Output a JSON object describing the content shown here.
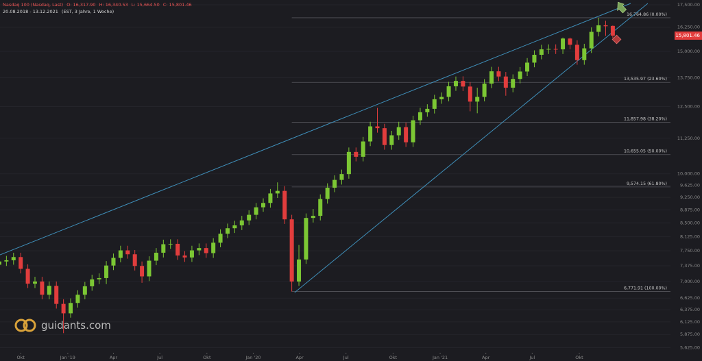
{
  "chart_data": {
    "type": "candlestick",
    "title": "Nasdaq 100 (Nasdaq, Last)",
    "ohlc_labels": [
      "O: 16,317.90",
      "H: 16,340.53",
      "L: 15,664.50",
      "C: 15,801.46"
    ],
    "subtitle": "20.08.2018 - 13.12.2021",
    "period": "(EST, 3 Jahre, 1 Woche)",
    "watermark": "guidants.com",
    "up_color": "#7cc734",
    "down_color": "#e23d3d",
    "log_scale": true,
    "grid": true,
    "open": [
      7400,
      7480,
      7510,
      7590,
      7300,
      6950,
      7000,
      6700,
      6900,
      6500,
      6300,
      6520,
      6700,
      6890,
      7050,
      7080,
      7380,
      7570,
      7760,
      7660,
      7370,
      7120,
      7500,
      7700,
      7920,
      7930,
      7630,
      7580,
      7760,
      7820,
      7690,
      7960,
      8200,
      8350,
      8430,
      8570,
      8730,
      8950,
      9080,
      9370,
      9450,
      8600,
      7000,
      7530,
      8640,
      8700,
      9200,
      9550,
      9800,
      9990,
      10750,
      10580,
      11130,
      11700,
      11630,
      11000,
      11360,
      11670,
      11100,
      11940,
      12260,
      12400,
      12800,
      12900,
      13360,
      13600,
      13350,
      12700,
      12900,
      13480,
      14040,
      13800,
      13300,
      13690,
      14030,
      14450,
      14830,
      15100,
      15120,
      15100,
      15650,
      15330,
      14570,
      15150,
      16000,
      16350,
      16317.9
    ],
    "high": [
      7590,
      7620,
      7700,
      7700,
      7410,
      7110,
      7110,
      7000,
      7000,
      6600,
      6620,
      6800,
      6990,
      7160,
      7190,
      7490,
      7680,
      7880,
      7880,
      7770,
      7480,
      7610,
      7820,
      8040,
      8050,
      8050,
      7740,
      7880,
      7940,
      7940,
      8080,
      8320,
      8480,
      8560,
      8700,
      8860,
      9080,
      9220,
      9510,
      9720,
      9600,
      8730,
      7900,
      8770,
      8900,
      9340,
      9690,
      9950,
      10140,
      10910,
      10910,
      11300,
      11880,
      12440,
      11800,
      11530,
      11880,
      11850,
      12120,
      12440,
      12590,
      12990,
      13090,
      13560,
      13800,
      13810,
      13550,
      13300,
      13680,
      14250,
      14250,
      14010,
      13900,
      14240,
      14670,
      15050,
      15330,
      15350,
      15350,
      15700,
      15700,
      15560,
      15380,
      16240,
      16764.86,
      16600,
      16340.53
    ],
    "low": [
      7290,
      7370,
      7400,
      7190,
      6850,
      6850,
      6600,
      6600,
      6400,
      5900,
      6210,
      6420,
      6600,
      6790,
      6940,
      6940,
      7270,
      7460,
      7550,
      7260,
      6970,
      7010,
      7390,
      7580,
      7800,
      7520,
      7470,
      7470,
      7640,
      7570,
      7570,
      7840,
      8080,
      8220,
      8300,
      8440,
      8600,
      8820,
      8940,
      9230,
      8470,
      6771.91,
      6900,
      7420,
      8510,
      8570,
      9060,
      9410,
      9650,
      9840,
      10420,
      10420,
      10960,
      11460,
      10830,
      10830,
      11190,
      10930,
      10930,
      11760,
      12080,
      12210,
      12610,
      12710,
      13160,
      13150,
      12300,
      12220,
      12710,
      13280,
      13590,
      12950,
      13100,
      13490,
      13820,
      14230,
      14610,
      14870,
      14870,
      14870,
      15100,
      14350,
      14350,
      14920,
      15760,
      15790,
      15664.5
    ],
    "close": [
      7480,
      7510,
      7590,
      7300,
      6950,
      7000,
      6700,
      6900,
      6500,
      6300,
      6520,
      6700,
      6890,
      7050,
      7080,
      7380,
      7570,
      7760,
      7660,
      7370,
      7120,
      7500,
      7700,
      7920,
      7930,
      7630,
      7580,
      7760,
      7820,
      7690,
      7960,
      8200,
      8350,
      8430,
      8570,
      8730,
      8950,
      9080,
      9370,
      9450,
      8600,
      7000,
      7530,
      8640,
      8700,
      9200,
      9550,
      9800,
      9990,
      10750,
      10580,
      11130,
      11700,
      11630,
      11000,
      11360,
      11670,
      11100,
      11940,
      12260,
      12400,
      12800,
      12900,
      13360,
      13600,
      13350,
      12700,
      12900,
      13480,
      14040,
      13800,
      13300,
      13690,
      14030,
      14450,
      14830,
      15100,
      15120,
      15100,
      15650,
      15330,
      14570,
      15150,
      16000,
      16350,
      16300,
      15801.46
    ],
    "xlim": [
      0.1,
      98.5
    ],
    "xticks": [
      {
        "value": 3.0,
        "label": "Okt"
      },
      {
        "value": 9.6,
        "label": "Jan '19"
      },
      {
        "value": 16.0,
        "label": "Apr"
      },
      {
        "value": 22.5,
        "label": "Jul"
      },
      {
        "value": 29.1,
        "label": "Okt"
      },
      {
        "value": 35.6,
        "label": "Jan '20"
      },
      {
        "value": 42.1,
        "label": "Apr"
      },
      {
        "value": 48.6,
        "label": "Jul"
      },
      {
        "value": 55.2,
        "label": "Okt"
      },
      {
        "value": 61.8,
        "label": "Jan '21"
      },
      {
        "value": 68.2,
        "label": "Apr"
      },
      {
        "value": 74.7,
        "label": "Jul"
      },
      {
        "value": 81.3,
        "label": "Okt"
      }
    ],
    "ylim": [
      5380,
      17780
    ],
    "yticks": [
      {
        "value": 17500,
        "label": "17,500.00"
      },
      {
        "value": 16250,
        "label": "16,250.00"
      },
      {
        "value": 15000,
        "label": "15,000.00"
      },
      {
        "value": 13750,
        "label": "13,750.00"
      },
      {
        "value": 12500,
        "label": "12,500.00"
      },
      {
        "value": 11250,
        "label": "11,250.00"
      },
      {
        "value": 10000,
        "label": "10,000.00"
      },
      {
        "value": 9625,
        "label": "9,625.00"
      },
      {
        "value": 9250,
        "label": "9,250.00"
      },
      {
        "value": 8875,
        "label": "8,875.00"
      },
      {
        "value": 8500,
        "label": "8,500.00"
      },
      {
        "value": 8125,
        "label": "8,125.00"
      },
      {
        "value": 7750,
        "label": "7,750.00"
      },
      {
        "value": 7375,
        "label": "7,375.00"
      },
      {
        "value": 7000,
        "label": "7,000.00"
      },
      {
        "value": 6625,
        "label": "6,625.00"
      },
      {
        "value": 6375,
        "label": "6,375.00"
      },
      {
        "value": 6125,
        "label": "6,125.00"
      },
      {
        "value": 5875,
        "label": "5,875.00"
      },
      {
        "value": 5625,
        "label": "5,625.00"
      }
    ],
    "last_price": {
      "value": 15801.46,
      "label": "15,801.46"
    },
    "fib_start": 41,
    "fib_levels": [
      {
        "value": 16764.86,
        "label": "16,764.86 (0.00%)"
      },
      {
        "value": 13535.97,
        "label": "13,535.97 (23.60%)"
      },
      {
        "value": 11857.98,
        "label": "11,857.98 (38.20%)"
      },
      {
        "value": 10655.05,
        "label": "10,655.05 (50.00%)"
      },
      {
        "value": 9574.15,
        "label": "9,574.15 (61.80%)"
      },
      {
        "value": 6771.91,
        "label": "6,771.91 (100.00%)"
      }
    ],
    "trendline_color": "#3f8fba",
    "trendlines": [
      {
        "x": [
          0.1,
          88.5
        ],
        "y": [
          7645,
          17580
        ]
      },
      {
        "x": [
          41.4,
          90.9
        ],
        "y": [
          6750,
          17580
        ]
      }
    ]
  }
}
